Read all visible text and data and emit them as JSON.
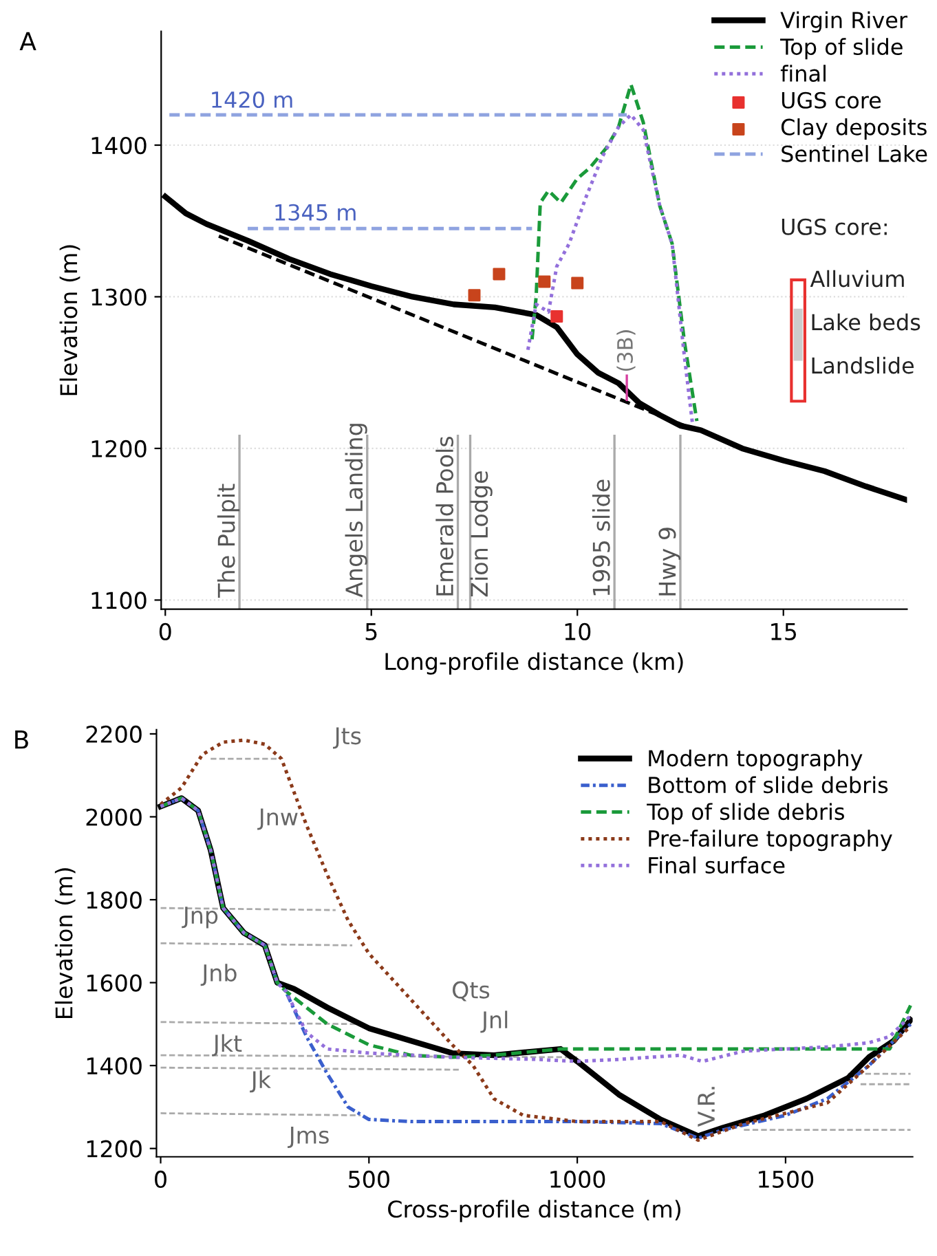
{
  "chart_data": [
    {
      "type": "line",
      "title": "A",
      "xlabel": "Long-profile distance (km)",
      "ylabel": "Elevation (m)",
      "xlim": [
        -0.1,
        18
      ],
      "ylim": [
        1094,
        1475
      ],
      "xticks": [
        0,
        5,
        10,
        15
      ],
      "yticks": [
        1100,
        1200,
        1300,
        1400
      ],
      "grid": "y",
      "legend": "top right",
      "series": [
        {
          "name": "Virgin River",
          "color": "#000000",
          "line_style": "solid",
          "x": [
            0,
            0.5,
            1,
            2,
            3,
            4,
            5,
            6,
            7,
            8,
            9,
            9.5,
            10,
            10.5,
            11,
            11.5,
            12,
            12.5,
            13,
            14,
            15,
            16,
            17,
            18
          ],
          "values": [
            1366,
            1355,
            1348,
            1337,
            1325,
            1315,
            1307,
            1300,
            1295,
            1293,
            1288,
            1280,
            1262,
            1250,
            1243,
            1230,
            1222,
            1215,
            1212,
            1200,
            1192,
            1185,
            1175,
            1166
          ]
        },
        {
          "name": "Top of slide",
          "color": "#1a9a3a",
          "line_style": "dashed",
          "x": [
            8.9,
            9.0,
            9.1,
            9.3,
            9.6,
            10.0,
            10.3,
            10.7,
            11.0,
            11.3,
            11.6,
            12.0,
            12.3,
            12.6,
            12.9
          ],
          "values": [
            1272,
            1300,
            1362,
            1370,
            1362,
            1378,
            1385,
            1398,
            1412,
            1440,
            1415,
            1360,
            1335,
            1270,
            1218
          ]
        },
        {
          "name": "final",
          "color": "#9370db",
          "line_style": "dotted",
          "x": [
            8.8,
            9.0,
            9.3,
            9.5,
            9.8,
            10.2,
            10.6,
            11.0,
            11.3,
            11.6,
            12.0,
            12.3,
            12.6,
            12.8
          ],
          "values": [
            1265,
            1295,
            1290,
            1320,
            1335,
            1365,
            1392,
            1412,
            1420,
            1410,
            1360,
            1335,
            1260,
            1215
          ]
        },
        {
          "name": "UGS core",
          "type": "scatter",
          "marker": "square",
          "color": "#e8312f",
          "x": [
            9.5
          ],
          "values": [
            1287
          ]
        },
        {
          "name": "Clay deposits",
          "type": "scatter",
          "marker": "square",
          "color": "#c8441c",
          "x": [
            7.5,
            8.1,
            9.2,
            10.0
          ],
          "values": [
            1301,
            1315,
            1310,
            1309
          ]
        },
        {
          "name": "Sentinel Lake",
          "color": "#8fa3e0",
          "line_style": "dashed",
          "x": [
            0.1,
            11.2
          ],
          "values": [
            1420,
            1420
          ]
        },
        {
          "color": "#8fa3e0",
          "line_style": "dashed",
          "x": [
            2.0,
            8.9
          ],
          "values": [
            1345,
            1345
          ]
        },
        {
          "color": "#000000",
          "line_style": "dashed",
          "x": [
            1.3,
            12.6
          ],
          "values": [
            1340,
            1215
          ]
        }
      ],
      "ref_lines": [
        {
          "axis": "x",
          "value": 1.8,
          "label": "The Pulpit",
          "color": "#aaaaaa"
        },
        {
          "axis": "x",
          "value": 4.9,
          "label": "Angels Landing",
          "color": "#aaaaaa"
        },
        {
          "axis": "x",
          "value": 7.1,
          "label": "Emerald Pools",
          "color": "#aaaaaa"
        },
        {
          "axis": "x",
          "value": 7.4,
          "label": "Zion Lodge",
          "color": "#aaaaaa"
        },
        {
          "axis": "x",
          "value": 10.9,
          "label": "1995 slide",
          "color": "#aaaaaa"
        },
        {
          "axis": "x",
          "value": 12.5,
          "label": "Hwy 9",
          "color": "#aaaaaa"
        }
      ],
      "annotations": [
        "1420 m",
        "1345 m",
        {
          "text": "(3B)",
          "x": 11.2,
          "y": 1240
        },
        "UGS core:",
        "Alluvium",
        "Lake beds",
        "Landslide"
      ]
    },
    {
      "type": "line",
      "title": "B",
      "xlabel": "Cross-profile distance (m)",
      "ylabel": "Elevation (m)",
      "xlim": [
        -10,
        1805
      ],
      "ylim": [
        1180,
        2210
      ],
      "xticks": [
        0,
        500,
        1000,
        1500
      ],
      "yticks": [
        1200,
        1400,
        1600,
        1800,
        2000,
        2200
      ],
      "legend": "top right",
      "series": [
        {
          "color": "#aaaaaa",
          "line_style": "dashed",
          "x": [
            120,
            280
          ],
          "values": [
            2140,
            2140
          ]
        },
        {
          "color": "#aaaaaa",
          "line_style": "dashed",
          "x": [
            0,
            420
          ],
          "values": [
            1780,
            1775
          ]
        },
        {
          "color": "#aaaaaa",
          "line_style": "dashed",
          "x": [
            0,
            460
          ],
          "values": [
            1695,
            1690
          ]
        },
        {
          "color": "#aaaaaa",
          "line_style": "dashed",
          "x": [
            0,
            480
          ],
          "values": [
            1505,
            1500
          ]
        },
        {
          "color": "#aaaaaa",
          "line_style": "dashed",
          "x": [
            0,
            1000
          ],
          "values": [
            1425,
            1420
          ]
        },
        {
          "color": "#aaaaaa",
          "line_style": "dashed",
          "x": [
            0,
            720
          ],
          "values": [
            1395,
            1390
          ]
        },
        {
          "color": "#aaaaaa",
          "line_style": "dashed",
          "x": [
            0,
            480
          ],
          "values": [
            1285,
            1280
          ]
        },
        {
          "color": "#aaaaaa",
          "line_style": "dashed",
          "x": [
            1650,
            1800
          ],
          "values": [
            1380,
            1380
          ]
        },
        {
          "color": "#aaaaaa",
          "line_style": "dashed",
          "x": [
            1680,
            1800
          ],
          "values": [
            1355,
            1355
          ]
        },
        {
          "color": "#aaaaaa",
          "line_style": "dashed",
          "x": [
            1400,
            1800
          ],
          "values": [
            1245,
            1245
          ]
        },
        {
          "name": "Modern topography",
          "color": "#000000",
          "line_style": "solid",
          "x": [
            0,
            50,
            90,
            120,
            150,
            200,
            250,
            280,
            320,
            400,
            500,
            600,
            700,
            800,
            960,
            1000,
            1100,
            1200,
            1290,
            1350,
            1450,
            1550,
            1650,
            1700,
            1760,
            1800
          ],
          "values": [
            2025,
            2045,
            2015,
            1920,
            1780,
            1720,
            1690,
            1600,
            1585,
            1540,
            1490,
            1460,
            1430,
            1425,
            1440,
            1410,
            1330,
            1270,
            1230,
            1250,
            1280,
            1320,
            1370,
            1420,
            1460,
            1510
          ]
        },
        {
          "name": "Bottom of slide debris",
          "color": "#3a5fcd",
          "line_style": "dashdot",
          "x": [
            0,
            50,
            90,
            120,
            150,
            200,
            250,
            280,
            300,
            350,
            400,
            450,
            500,
            600,
            800,
            1000,
            1200,
            1290,
            1350,
            1500,
            1600,
            1700,
            1800
          ],
          "values": [
            2025,
            2045,
            2015,
            1920,
            1780,
            1720,
            1690,
            1600,
            1580,
            1470,
            1380,
            1300,
            1270,
            1265,
            1265,
            1265,
            1260,
            1225,
            1245,
            1280,
            1320,
            1400,
            1500
          ]
        },
        {
          "name": "Top of slide debris",
          "color": "#1a9a3a",
          "line_style": "dashed",
          "x": [
            0,
            50,
            90,
            120,
            150,
            200,
            250,
            280,
            300,
            400,
            500,
            600,
            700,
            800,
            960,
            1100,
            1500,
            1750,
            1800
          ],
          "values": [
            2025,
            2045,
            2015,
            1920,
            1780,
            1720,
            1690,
            1600,
            1580,
            1500,
            1450,
            1425,
            1420,
            1425,
            1440,
            1440,
            1440,
            1440,
            1545
          ]
        },
        {
          "name": "Pre-failure topography",
          "color": "#8b3a1a",
          "line_style": "dotted",
          "x": [
            0,
            50,
            100,
            150,
            200,
            250,
            290,
            350,
            400,
            450,
            500,
            600,
            700,
            750,
            800,
            870,
            1000,
            1200,
            1290,
            1400,
            1600,
            1700,
            1800
          ],
          "values": [
            2030,
            2070,
            2150,
            2180,
            2185,
            2175,
            2140,
            1980,
            1860,
            1750,
            1670,
            1560,
            1450,
            1400,
            1320,
            1280,
            1265,
            1265,
            1220,
            1260,
            1310,
            1400,
            1495
          ]
        },
        {
          "name": "Final surface",
          "color": "#9370db",
          "line_style": "dotted",
          "x": [
            0,
            50,
            90,
            120,
            150,
            200,
            250,
            280,
            300,
            350,
            400,
            500,
            700,
            900,
            1000,
            1100,
            1250,
            1300,
            1400,
            1600,
            1700,
            1750,
            1800
          ],
          "values": [
            2025,
            2045,
            2015,
            1920,
            1780,
            1720,
            1690,
            1600,
            1580,
            1480,
            1440,
            1430,
            1420,
            1415,
            1410,
            1415,
            1425,
            1410,
            1435,
            1445,
            1455,
            1470,
            1520
          ]
        }
      ],
      "annotations": [
        "Jts",
        "Jnw",
        "Jnp",
        "Jnb",
        "Jkt",
        "Jk",
        "Jms",
        "Qts",
        "Jnl",
        "V.R."
      ]
    }
  ]
}
